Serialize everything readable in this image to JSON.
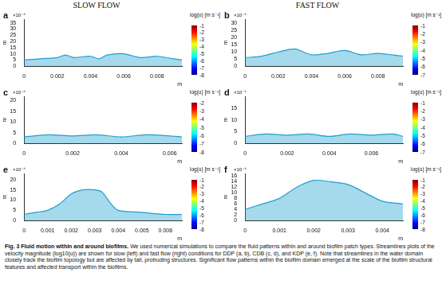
{
  "column_titles": [
    "SLOW FLOW",
    "FAST FLOW"
  ],
  "caption": {
    "label": "Fig. 3",
    "title": "Fluid motion within and around biofilms.",
    "text": "We used numerical simulations to compare the fluid patterns within and around biofilm patch types. Streamlines plots of the velocity magnitude (log10(u)) are shown for slow (left) and fast flow (right) conditions for DDP (a, b), CDB (c, d), and KDP (e, f). Note that streamlines in the water domain closely track the biofilm topology but are affected by tall, protruding structures. Significant flow patterns within the biofilm domain emerged at the scale of the biofilm structural features and affected transport within the biofilms."
  },
  "chart_data": [
    {
      "type": "line",
      "panel": "a",
      "x_label": "m",
      "y_label": "m",
      "y_multiplier": "×10⁻⁴",
      "grid": false,
      "x": [
        0,
        0.001,
        0.002,
        0.0025,
        0.003,
        0.004,
        0.0045,
        0.005,
        0.006,
        0.007,
        0.008,
        0.009,
        0.0095
      ],
      "series": [
        {
          "color": "#1f9fd0",
          "values": [
            5,
            6,
            7,
            9,
            7,
            8,
            6,
            9,
            10,
            7,
            8,
            6,
            5
          ]
        }
      ],
      "xlim": [
        0,
        0.0095
      ],
      "xticks": [
        0,
        0.002,
        0.004,
        0.006,
        0.008
      ],
      "ylim": [
        0,
        38
      ],
      "yticks": [
        0,
        5,
        10,
        15,
        20,
        25,
        30,
        35
      ],
      "colorbar": {
        "title": "log(u) [m s⁻¹]",
        "range": [
          -8,
          -1
        ],
        "ticks": [
          -8,
          -7,
          -6,
          -5,
          -4,
          -3,
          -2,
          -1
        ]
      }
    },
    {
      "type": "line",
      "panel": "b",
      "x_label": "m",
      "y_label": "m",
      "y_multiplier": "×10⁻⁴",
      "grid": false,
      "x": [
        0,
        0.001,
        0.002,
        0.003,
        0.004,
        0.005,
        0.006,
        0.007,
        0.008,
        0.0095
      ],
      "series": [
        {
          "color": "#1f9fd0",
          "values": [
            6,
            7,
            10,
            12,
            8,
            9,
            11,
            8,
            9,
            7
          ]
        }
      ],
      "xlim": [
        0,
        0.0095
      ],
      "xticks": [
        0,
        0.002,
        0.004,
        0.006,
        0.008
      ],
      "ylim": [
        0,
        33
      ],
      "yticks": [
        0,
        5,
        10,
        15,
        20,
        25,
        30
      ],
      "colorbar": {
        "title": "log(u) [m s⁻¹]",
        "range": [
          -7,
          -1
        ],
        "ticks": [
          -7,
          -6,
          -5,
          -4,
          -3,
          -2,
          -1
        ]
      }
    },
    {
      "type": "line",
      "panel": "c",
      "x_label": "m",
      "y_label": "m",
      "y_multiplier": "×10⁻⁴",
      "grid": false,
      "x": [
        0,
        0.001,
        0.002,
        0.003,
        0.004,
        0.005,
        0.006,
        0.0065
      ],
      "series": [
        {
          "color": "#1f9fd0",
          "values": [
            3,
            4,
            3.5,
            4,
            3,
            4,
            3.5,
            3
          ]
        }
      ],
      "xlim": [
        0,
        0.0065
      ],
      "xticks": [
        0,
        0.002,
        0.004,
        0.006
      ],
      "ylim": [
        0,
        22
      ],
      "yticks": [
        0,
        5,
        10,
        15,
        20
      ],
      "colorbar": {
        "title": "log(u) [m s⁻¹]",
        "range": [
          -8,
          -2
        ],
        "ticks": [
          -8,
          -7,
          -6,
          -5,
          -4,
          -3,
          -2
        ]
      }
    },
    {
      "type": "line",
      "panel": "d",
      "x_label": "m",
      "y_label": "m",
      "y_multiplier": "×10⁻⁴",
      "grid": false,
      "x": [
        0,
        0.001,
        0.002,
        0.003,
        0.004,
        0.005,
        0.006,
        0.007,
        0.0075
      ],
      "series": [
        {
          "color": "#1f9fd0",
          "values": [
            3,
            4,
            3.5,
            4,
            3,
            4,
            3.5,
            4,
            3
          ]
        }
      ],
      "xlim": [
        0,
        0.0075
      ],
      "xticks": [
        0,
        0.002,
        0.004,
        0.006
      ],
      "ylim": [
        0,
        20
      ],
      "yticks": [
        0,
        5,
        10,
        15
      ],
      "colorbar": {
        "title": "log(u) [m s⁻¹]",
        "range": [
          -7,
          -1
        ],
        "ticks": [
          -7,
          -6,
          -5,
          -4,
          -3,
          -2,
          -1
        ]
      }
    },
    {
      "type": "line",
      "panel": "e",
      "x_label": "m",
      "y_label": "m",
      "y_multiplier": "×10⁻⁴",
      "grid": false,
      "x": [
        0,
        0.0005,
        0.001,
        0.0015,
        0.002,
        0.0025,
        0.003,
        0.0033,
        0.0037,
        0.004,
        0.005,
        0.006,
        0.0067
      ],
      "series": [
        {
          "color": "#1f9fd0",
          "values": [
            3,
            4,
            5,
            8,
            13,
            15,
            15,
            14,
            8,
            5,
            4,
            3,
            3
          ]
        }
      ],
      "xlim": [
        0,
        0.0067
      ],
      "xticks": [
        0,
        0.001,
        0.002,
        0.003,
        0.004,
        0.005,
        0.006
      ],
      "ylim": [
        0,
        23
      ],
      "yticks": [
        0,
        5,
        10,
        15,
        20
      ],
      "colorbar": {
        "title": "log(u) [m s⁻¹]",
        "range": [
          -8,
          -1
        ],
        "ticks": [
          -8,
          -7,
          -6,
          -5,
          -4,
          -3,
          -2,
          -1
        ]
      }
    },
    {
      "type": "line",
      "panel": "f",
      "x_label": "m",
      "y_label": "m",
      "y_multiplier": "×10⁻⁴",
      "grid": false,
      "x": [
        0,
        0.0005,
        0.001,
        0.0015,
        0.002,
        0.0025,
        0.003,
        0.0035,
        0.004,
        0.0046
      ],
      "series": [
        {
          "color": "#1f9fd0",
          "values": [
            4,
            6,
            8,
            12,
            14.5,
            14,
            13,
            10,
            7,
            6
          ]
        }
      ],
      "xlim": [
        0,
        0.0046
      ],
      "xticks": [
        0,
        0.001,
        0.002,
        0.003,
        0.004
      ],
      "ylim": [
        0,
        17
      ],
      "yticks": [
        0,
        2,
        4,
        6,
        8,
        10,
        12,
        14,
        16
      ],
      "colorbar": {
        "title": "log(u) [m s⁻¹]",
        "range": [
          -8,
          -1
        ],
        "ticks": [
          -8,
          -7,
          -6,
          -5,
          -4,
          -3,
          -2,
          -1
        ]
      }
    }
  ]
}
